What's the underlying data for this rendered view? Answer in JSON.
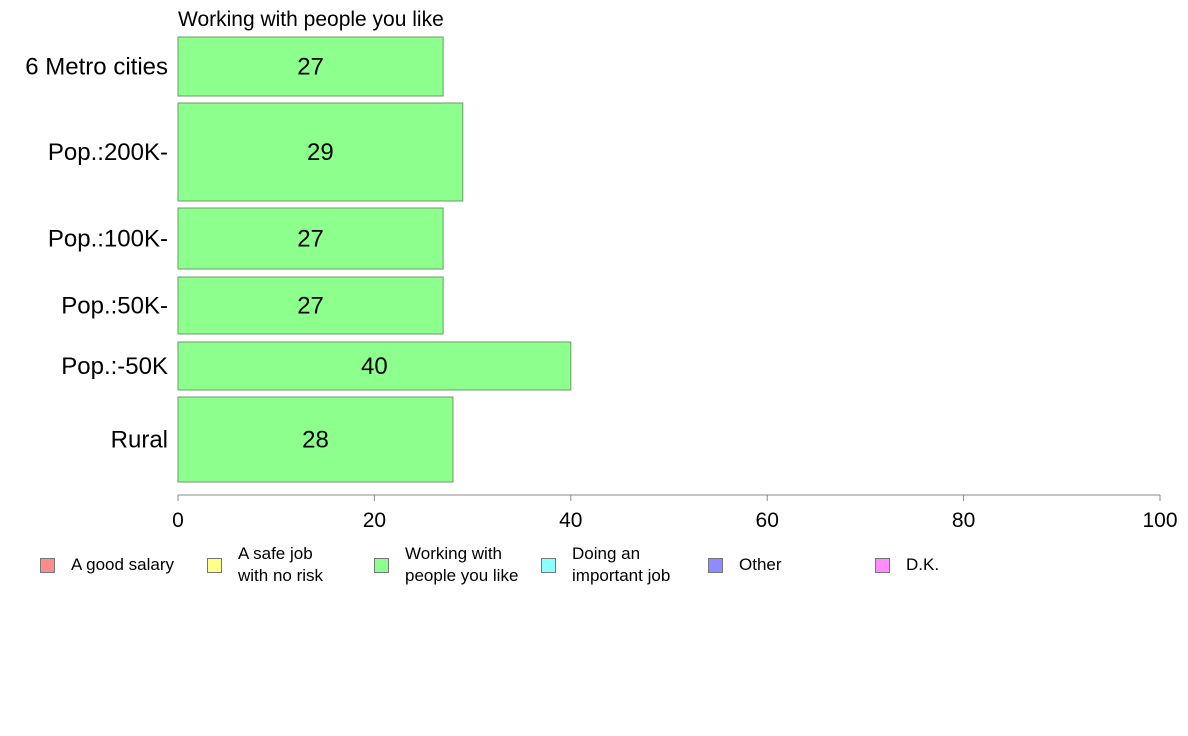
{
  "chart_data": {
    "type": "bar",
    "orientation": "horizontal",
    "title": "Working with people you like",
    "categories": [
      "6 Metro cities",
      "Pop.:200K-",
      "Pop.:100K-",
      "Pop.:50K-",
      "Pop.:-50K",
      "Rural"
    ],
    "values": [
      27,
      29,
      27,
      27,
      40,
      28
    ],
    "value_labels": [
      "27",
      "29",
      "27",
      "27",
      "40",
      "28"
    ],
    "xlim": [
      0,
      100
    ],
    "xticks": [
      0,
      20,
      40,
      60,
      80,
      100
    ],
    "xtick_labels": [
      "0",
      "20",
      "40",
      "60",
      "80",
      "100"
    ],
    "bar_color": "#8cff8c",
    "grid": false,
    "legend_position": "bottom",
    "legend": [
      {
        "label": "A good salary",
        "color": "#ff8c8c"
      },
      {
        "label": "A safe job\nwith no risk",
        "color": "#ffff8c"
      },
      {
        "label": "Working with\npeople you like",
        "color": "#8cff8c"
      },
      {
        "label": "Doing an\nimportant job",
        "color": "#8cffff"
      },
      {
        "label": "Other",
        "color": "#8c8cff"
      },
      {
        "label": "D.K.",
        "color": "#ff8cff"
      }
    ]
  }
}
